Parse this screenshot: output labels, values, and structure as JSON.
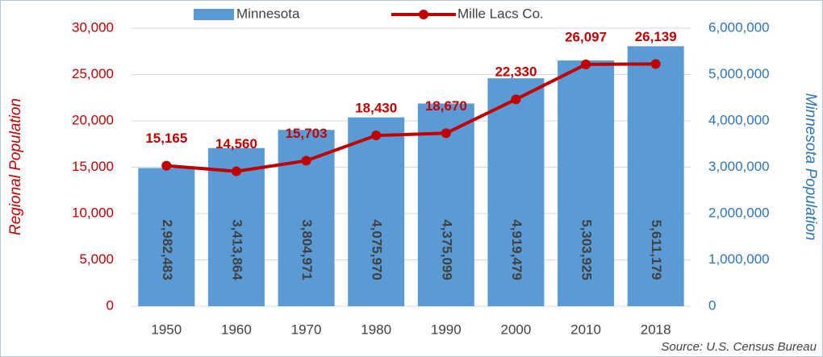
{
  "chart_data": {
    "type": "combo",
    "categories": [
      "1950",
      "1960",
      "1970",
      "1980",
      "1990",
      "2000",
      "2010",
      "2018"
    ],
    "series": [
      {
        "name": "Minnesota",
        "type": "bar",
        "axis": "y2",
        "color": "#5b9bd5",
        "values": [
          2982483,
          3413864,
          3804971,
          4075970,
          4375099,
          4919479,
          5303925,
          5611179
        ],
        "value_labels": [
          "2,982,483",
          "3,413,864",
          "3,804,971",
          "4,075,970",
          "4,375,099",
          "4,919,479",
          "5,303,925",
          "5,611,179"
        ]
      },
      {
        "name": "Mille Lacs Co.",
        "type": "line",
        "color": "#c00000",
        "values": [
          15165,
          14560,
          15703,
          18430,
          18670,
          22330,
          26097,
          26139
        ],
        "value_labels": [
          "15,165",
          "14,560",
          "15,703",
          "18,430",
          "18,670",
          "22,330",
          "26,097",
          "26,139"
        ]
      }
    ],
    "y_label": "Regional Population",
    "y2_label": "Minnesota Population",
    "source": "Source: U.S. Census Bureau",
    "ylim": [
      0,
      30000
    ],
    "yticks": [
      0,
      {
        "value": 5000,
        "label": "5,000"
      },
      {
        "value": 10000,
        "label": "10,000"
      },
      {
        "value": 15000,
        "label": "15,000"
      },
      {
        "value": 20000,
        "label": "20,000"
      },
      {
        "value": 25000,
        "label": "25,000"
      },
      {
        "value": 30000,
        "label": "30,000"
      }
    ],
    "y2lim": [
      0,
      6000000
    ],
    "y2ticks": [
      0,
      {
        "value": 1000000,
        "label": "1,000,000"
      },
      {
        "value": 2000000,
        "label": "2,000,000"
      },
      {
        "value": 3000000,
        "label": "3,000,000"
      },
      {
        "value": 4000000,
        "label": "4,000,000"
      },
      {
        "value": 5000000,
        "label": "5,000,000"
      },
      {
        "value": 6000000,
        "label": "6,000,000"
      }
    ],
    "grid": true,
    "legend": "top"
  }
}
